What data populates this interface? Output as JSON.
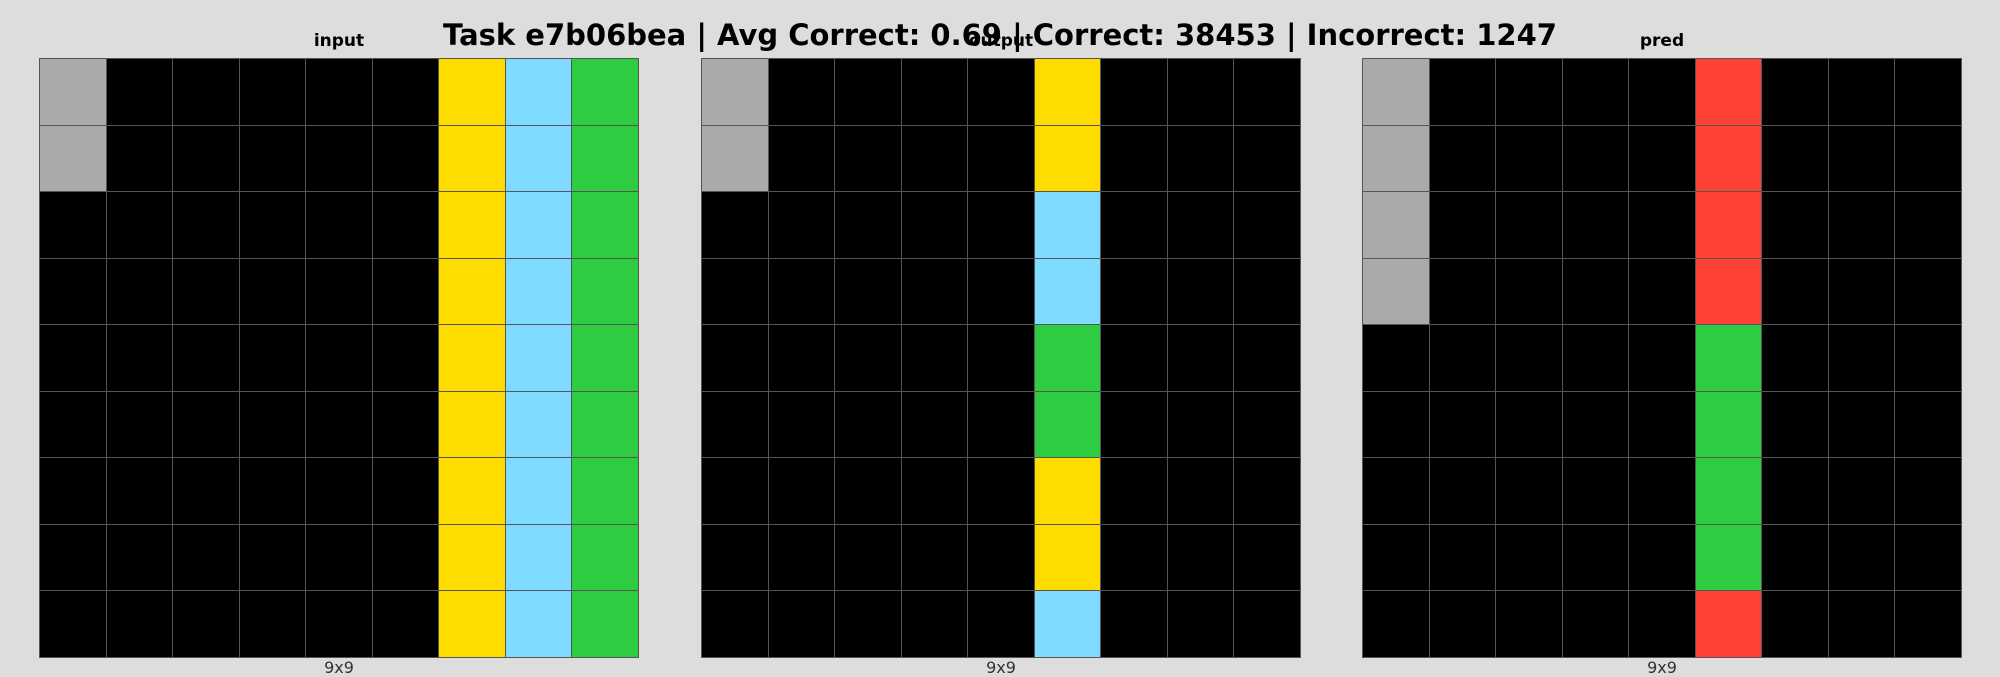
{
  "title": "Task e7b06bea | Avg Correct: 0.69 | Correct: 38453 | Incorrect: 1247",
  "palette": {
    "0": "#000000",
    "2": "#ff4136",
    "3": "#2ecc40",
    "4": "#ffdc00",
    "5": "#aaaaaa",
    "8": "#7fdbff"
  },
  "panels": [
    {
      "title": "input",
      "dims": "9x9",
      "grid": [
        [
          5,
          0,
          0,
          0,
          0,
          0,
          4,
          8,
          3
        ],
        [
          5,
          0,
          0,
          0,
          0,
          0,
          4,
          8,
          3
        ],
        [
          0,
          0,
          0,
          0,
          0,
          0,
          4,
          8,
          3
        ],
        [
          0,
          0,
          0,
          0,
          0,
          0,
          4,
          8,
          3
        ],
        [
          0,
          0,
          0,
          0,
          0,
          0,
          4,
          8,
          3
        ],
        [
          0,
          0,
          0,
          0,
          0,
          0,
          4,
          8,
          3
        ],
        [
          0,
          0,
          0,
          0,
          0,
          0,
          4,
          8,
          3
        ],
        [
          0,
          0,
          0,
          0,
          0,
          0,
          4,
          8,
          3
        ],
        [
          0,
          0,
          0,
          0,
          0,
          0,
          4,
          8,
          3
        ]
      ]
    },
    {
      "title": "output",
      "dims": "9x9",
      "grid": [
        [
          5,
          0,
          0,
          0,
          0,
          4,
          0,
          0,
          0
        ],
        [
          5,
          0,
          0,
          0,
          0,
          4,
          0,
          0,
          0
        ],
        [
          0,
          0,
          0,
          0,
          0,
          8,
          0,
          0,
          0
        ],
        [
          0,
          0,
          0,
          0,
          0,
          8,
          0,
          0,
          0
        ],
        [
          0,
          0,
          0,
          0,
          0,
          3,
          0,
          0,
          0
        ],
        [
          0,
          0,
          0,
          0,
          0,
          3,
          0,
          0,
          0
        ],
        [
          0,
          0,
          0,
          0,
          0,
          4,
          0,
          0,
          0
        ],
        [
          0,
          0,
          0,
          0,
          0,
          4,
          0,
          0,
          0
        ],
        [
          0,
          0,
          0,
          0,
          0,
          8,
          0,
          0,
          0
        ]
      ]
    },
    {
      "title": "pred",
      "dims": "9x9",
      "grid": [
        [
          5,
          0,
          0,
          0,
          0,
          2,
          0,
          0,
          0
        ],
        [
          5,
          0,
          0,
          0,
          0,
          2,
          0,
          0,
          0
        ],
        [
          5,
          0,
          0,
          0,
          0,
          2,
          0,
          0,
          0
        ],
        [
          5,
          0,
          0,
          0,
          0,
          2,
          0,
          0,
          0
        ],
        [
          0,
          0,
          0,
          0,
          0,
          3,
          0,
          0,
          0
        ],
        [
          0,
          0,
          0,
          0,
          0,
          3,
          0,
          0,
          0
        ],
        [
          0,
          0,
          0,
          0,
          0,
          3,
          0,
          0,
          0
        ],
        [
          0,
          0,
          0,
          0,
          0,
          3,
          0,
          0,
          0
        ],
        [
          0,
          0,
          0,
          0,
          0,
          2,
          0,
          0,
          0
        ]
      ]
    }
  ]
}
